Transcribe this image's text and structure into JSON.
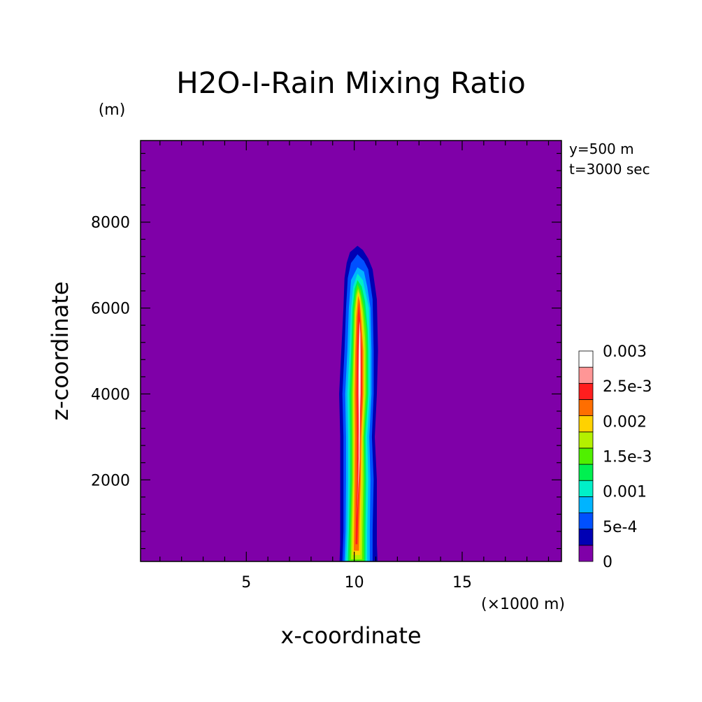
{
  "chart_data": {
    "type": "heatmap",
    "title": "H2O-I-Rain Mixing Ratio",
    "xlabel": "x-coordinate",
    "ylabel": "z-coordinate",
    "x_unit": "(×1000 m)",
    "y_unit": "(m)",
    "xlim": [
      0.1,
      19.6
    ],
    "ylim": [
      100,
      9900
    ],
    "x_ticks": [
      5,
      10,
      15
    ],
    "y_ticks": [
      2000,
      4000,
      6000,
      8000
    ],
    "annotations": [
      "y=500 m",
      "t=3000 sec"
    ],
    "colorbar": {
      "levels": [
        0,
        0.00025,
        0.0005,
        0.00075,
        0.001,
        0.00125,
        0.0015,
        0.00175,
        0.002,
        0.00225,
        0.0025,
        0.00275,
        0.003
      ],
      "labels": [
        "0",
        "5e-4",
        "0.001",
        "1.5e-3",
        "0.002",
        "2.5e-3",
        "0.003"
      ],
      "colors": [
        "#7f00a8",
        "#0000b4",
        "#0050ff",
        "#00b4ff",
        "#00f0c8",
        "#00f050",
        "#50f000",
        "#b4f000",
        "#ffd200",
        "#ff6e00",
        "#ff1e1e",
        "#ff9696",
        "#ffffff"
      ]
    },
    "contours": [
      {
        "level": 0.00025,
        "color": "#0000b4",
        "points": [
          [
            9.32,
            100
          ],
          [
            9.35,
            500
          ],
          [
            9.35,
            1000
          ],
          [
            9.35,
            2000
          ],
          [
            9.35,
            3000
          ],
          [
            9.3,
            4000
          ],
          [
            9.4,
            5000
          ],
          [
            9.5,
            6000
          ],
          [
            9.55,
            6700
          ],
          [
            9.65,
            7050
          ],
          [
            9.8,
            7300
          ],
          [
            10.15,
            7450
          ],
          [
            10.4,
            7350
          ],
          [
            10.65,
            7150
          ],
          [
            10.85,
            6900
          ],
          [
            11.05,
            6200
          ],
          [
            11.1,
            5000
          ],
          [
            11.05,
            4000
          ],
          [
            10.95,
            3000
          ],
          [
            11.05,
            2000
          ],
          [
            11.05,
            1000
          ],
          [
            11.05,
            500
          ],
          [
            11.08,
            100
          ]
        ]
      },
      {
        "level": 0.0005,
        "color": "#0050ff",
        "points": [
          [
            9.45,
            100
          ],
          [
            9.5,
            800
          ],
          [
            9.5,
            2000
          ],
          [
            9.5,
            3000
          ],
          [
            9.45,
            4000
          ],
          [
            9.55,
            5000
          ],
          [
            9.62,
            6000
          ],
          [
            9.7,
            6700
          ],
          [
            9.85,
            7050
          ],
          [
            10.15,
            7250
          ],
          [
            10.45,
            7100
          ],
          [
            10.65,
            6900
          ],
          [
            10.85,
            6200
          ],
          [
            10.9,
            5000
          ],
          [
            10.9,
            4000
          ],
          [
            10.82,
            3000
          ],
          [
            10.9,
            2000
          ],
          [
            10.85,
            800
          ],
          [
            10.85,
            100
          ]
        ]
      },
      {
        "level": 0.00075,
        "color": "#00b4ff",
        "points": [
          [
            9.55,
            100
          ],
          [
            9.6,
            800
          ],
          [
            9.62,
            2000
          ],
          [
            9.62,
            3000
          ],
          [
            9.58,
            4000
          ],
          [
            9.68,
            5000
          ],
          [
            9.75,
            6000
          ],
          [
            9.85,
            6650
          ],
          [
            10.15,
            6950
          ],
          [
            10.45,
            6850
          ],
          [
            10.6,
            6500
          ],
          [
            10.75,
            6000
          ],
          [
            10.8,
            5000
          ],
          [
            10.8,
            4000
          ],
          [
            10.7,
            3000
          ],
          [
            10.75,
            2000
          ],
          [
            10.72,
            800
          ],
          [
            10.72,
            100
          ]
        ]
      },
      {
        "level": 0.001,
        "color": "#00f0c8",
        "points": [
          [
            9.62,
            100
          ],
          [
            9.68,
            800
          ],
          [
            9.72,
            2000
          ],
          [
            9.72,
            3000
          ],
          [
            9.68,
            4000
          ],
          [
            9.78,
            5000
          ],
          [
            9.85,
            6000
          ],
          [
            9.95,
            6500
          ],
          [
            10.15,
            6800
          ],
          [
            10.4,
            6650
          ],
          [
            10.55,
            6300
          ],
          [
            10.68,
            6000
          ],
          [
            10.72,
            5000
          ],
          [
            10.72,
            4000
          ],
          [
            10.6,
            3000
          ],
          [
            10.65,
            2000
          ],
          [
            10.6,
            800
          ],
          [
            10.6,
            100
          ]
        ]
      },
      {
        "level": 0.00125,
        "color": "#00f050",
        "points": [
          [
            9.7,
            100
          ],
          [
            9.75,
            800
          ],
          [
            9.8,
            2000
          ],
          [
            9.8,
            3000
          ],
          [
            9.78,
            4000
          ],
          [
            9.86,
            5000
          ],
          [
            9.92,
            6000
          ],
          [
            10.02,
            6450
          ],
          [
            10.15,
            6650
          ],
          [
            10.35,
            6500
          ],
          [
            10.5,
            6150
          ],
          [
            10.62,
            5500
          ],
          [
            10.65,
            5000
          ],
          [
            10.65,
            4000
          ],
          [
            10.52,
            3000
          ],
          [
            10.55,
            2000
          ],
          [
            10.52,
            800
          ],
          [
            10.52,
            100
          ]
        ]
      },
      {
        "level": 0.0015,
        "color": "#50f000",
        "points": [
          [
            9.78,
            100
          ],
          [
            9.82,
            900
          ],
          [
            9.88,
            2000
          ],
          [
            9.88,
            3000
          ],
          [
            9.86,
            4000
          ],
          [
            9.93,
            5000
          ],
          [
            9.98,
            6000
          ],
          [
            10.06,
            6350
          ],
          [
            10.15,
            6550
          ],
          [
            10.3,
            6400
          ],
          [
            10.44,
            6050
          ],
          [
            10.56,
            5500
          ],
          [
            10.58,
            5000
          ],
          [
            10.58,
            4000
          ],
          [
            10.46,
            3000
          ],
          [
            10.48,
            2000
          ],
          [
            10.45,
            900
          ],
          [
            10.45,
            100
          ]
        ]
      },
      {
        "level": 0.00175,
        "color": "#b4f000",
        "points": [
          [
            9.85,
            150
          ],
          [
            9.88,
            1000
          ],
          [
            9.93,
            2000
          ],
          [
            9.93,
            3000
          ],
          [
            9.92,
            4000
          ],
          [
            9.97,
            5000
          ],
          [
            10.02,
            5900
          ],
          [
            10.1,
            6300
          ],
          [
            10.18,
            6450
          ],
          [
            10.28,
            6300
          ],
          [
            10.4,
            5950
          ],
          [
            10.5,
            5300
          ],
          [
            10.52,
            5000
          ],
          [
            10.52,
            4000
          ],
          [
            10.42,
            3000
          ],
          [
            10.42,
            2000
          ],
          [
            10.38,
            1000
          ],
          [
            10.36,
            150
          ]
        ]
      },
      {
        "level": 0.002,
        "color": "#ffd200",
        "points": [
          [
            9.92,
            250
          ],
          [
            9.94,
            1000
          ],
          [
            9.98,
            2000
          ],
          [
            9.98,
            3000
          ],
          [
            9.97,
            4000
          ],
          [
            10.02,
            5000
          ],
          [
            10.06,
            5900
          ],
          [
            10.12,
            6250
          ],
          [
            10.2,
            6380
          ],
          [
            10.28,
            6200
          ],
          [
            10.37,
            5800
          ],
          [
            10.46,
            5000
          ],
          [
            10.46,
            4000
          ],
          [
            10.37,
            3000
          ],
          [
            10.35,
            2000
          ],
          [
            10.3,
            1000
          ],
          [
            10.28,
            250
          ]
        ]
      },
      {
        "level": 0.00225,
        "color": "#ff6e00",
        "points": [
          [
            9.98,
            350
          ],
          [
            10.0,
            1000
          ],
          [
            10.02,
            2000
          ],
          [
            10.03,
            3000
          ],
          [
            10.02,
            4000
          ],
          [
            10.05,
            5000
          ],
          [
            10.1,
            5800
          ],
          [
            10.18,
            6280
          ],
          [
            10.26,
            6150
          ],
          [
            10.33,
            5700
          ],
          [
            10.42,
            5000
          ],
          [
            10.42,
            4000
          ],
          [
            10.33,
            3000
          ],
          [
            10.3,
            2000
          ],
          [
            10.24,
            1000
          ],
          [
            10.22,
            350
          ]
        ]
      },
      {
        "level": 0.0025,
        "color": "#ff1e1e",
        "points": [
          [
            10.06,
            500
          ],
          [
            10.08,
            1100
          ],
          [
            10.12,
            2000
          ],
          [
            10.12,
            3000
          ],
          [
            10.1,
            4000
          ],
          [
            10.12,
            5000
          ],
          [
            10.16,
            5800
          ],
          [
            10.22,
            6150
          ],
          [
            10.29,
            5600
          ],
          [
            10.35,
            5000
          ],
          [
            10.36,
            4000
          ],
          [
            10.28,
            3000
          ],
          [
            10.24,
            2000
          ],
          [
            10.18,
            1100
          ],
          [
            10.15,
            500
          ]
        ]
      },
      {
        "level": 0.00275,
        "color": "#ff9696",
        "points": [
          [
            10.12,
            1100
          ],
          [
            10.16,
            1700
          ],
          [
            10.2,
            2500
          ],
          [
            10.2,
            3200
          ],
          [
            10.18,
            4000
          ],
          [
            10.2,
            5000
          ],
          [
            10.24,
            5700
          ],
          [
            10.29,
            5400
          ],
          [
            10.3,
            5000
          ],
          [
            10.3,
            4000
          ],
          [
            10.24,
            3200
          ],
          [
            10.2,
            2500
          ],
          [
            10.18,
            1700
          ]
        ]
      },
      {
        "level": 0.003,
        "color": "#ffffff",
        "points": [
          [
            10.18,
            1700
          ],
          [
            10.21,
            2500
          ],
          [
            10.24,
            3500
          ],
          [
            10.22,
            4500
          ],
          [
            10.24,
            5300
          ],
          [
            10.26,
            5700
          ],
          [
            10.27,
            5300
          ],
          [
            10.28,
            4500
          ],
          [
            10.27,
            3500
          ],
          [
            10.25,
            2500
          ]
        ]
      }
    ]
  }
}
